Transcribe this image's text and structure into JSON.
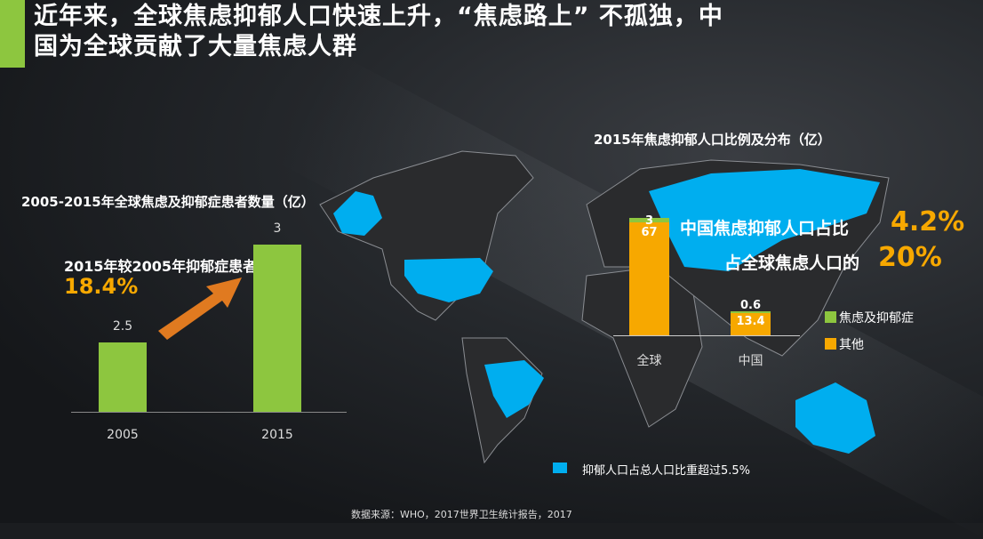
{
  "title_line1": "近年来，全球焦虑抑郁人口快速上升，“焦虑路上” 不孤独，中",
  "title_line2": "国为全球贡献了大量焦虑人群",
  "colors": {
    "green": "#8dc63f",
    "orange": "#f7a800",
    "blue": "#00aeef",
    "accent": "#8dc63f"
  },
  "callout_rise": {
    "label": "2015年较2005年抑郁症患者上升",
    "value": "18.4%"
  },
  "callout_china": {
    "share_label": "中国焦虑抑郁人口占比",
    "share_value": "4.2%",
    "global_label": "占全球焦虑人口的",
    "global_value": "20%"
  },
  "map_legend": "抑郁人口占总人口比重超过5.5%",
  "source": "数据来源：WHO，2017世界卫生统计报告，2017",
  "chart_data": [
    {
      "type": "bar",
      "title": "2005-2015年全球焦虑及抑郁症患者数量（亿）",
      "categories": [
        "2005",
        "2015"
      ],
      "values": [
        2.5,
        3
      ],
      "value_labels": [
        "2.5",
        "3"
      ],
      "ylim": [
        2.145,
        3.4
      ],
      "grid": false
    },
    {
      "type": "bar",
      "stacked": true,
      "title": "2015年焦虑抑郁人口比例及分布（亿）",
      "categories": [
        "全球",
        "中国"
      ],
      "series": [
        {
          "name": "其他",
          "values": [
            67,
            13.4
          ],
          "labels": [
            "67",
            "13.4"
          ]
        },
        {
          "name": "焦虑及抑郁症",
          "values": [
            3,
            0.6
          ],
          "labels": [
            "3",
            "0.6"
          ]
        }
      ],
      "legend": "right",
      "grid": false
    }
  ]
}
